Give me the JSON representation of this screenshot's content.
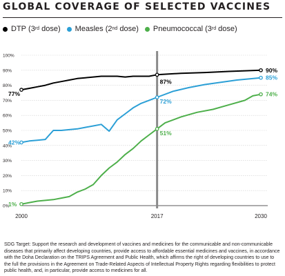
{
  "chart_data": {
    "type": "line",
    "title": "GLOBAL COVERAGE OF SELECTED VACCINES",
    "xlabel": "",
    "ylabel": "",
    "x_ticks": [
      "2000",
      "2017",
      "2030"
    ],
    "y_ticks": [
      "0%",
      "10%",
      "20%",
      "30%",
      "40%",
      "50%",
      "60%",
      "70%",
      "80%",
      "90%",
      "100%"
    ],
    "ylim": [
      0,
      100
    ],
    "xlim": [
      2000,
      2030
    ],
    "marker_year": 2017,
    "series": [
      {
        "name": "DTP",
        "legend_sup": "rd",
        "legend_suffix": "dose)",
        "color": "#000000",
        "x": [
          2000,
          2001,
          2002,
          2003,
          2004,
          2005,
          2006,
          2007,
          2008,
          2009,
          2010,
          2011,
          2012,
          2013,
          2014,
          2015,
          2016,
          2017
        ],
        "y": [
          77,
          78,
          79,
          80,
          81.5,
          82.5,
          83.5,
          84.5,
          85,
          85.5,
          86,
          86,
          86,
          85.5,
          86,
          86,
          86,
          87
        ],
        "proj_x": [
          2017,
          2020,
          2023,
          2026,
          2030
        ],
        "proj_y": [
          87,
          88,
          88.5,
          89.2,
          90
        ],
        "start_label": "77%",
        "mid_label": "87%",
        "end_label": "90%"
      },
      {
        "name": "Measles",
        "legend_sup": "nd",
        "legend_suffix": "dose)",
        "color": "#2b9fd6",
        "x": [
          2000,
          2001,
          2002,
          2003,
          2004,
          2005,
          2006,
          2007,
          2008,
          2009,
          2010,
          2011,
          2012,
          2013,
          2014,
          2015,
          2016,
          2017
        ],
        "y": [
          42,
          43,
          43.5,
          44,
          50,
          50,
          50.5,
          51,
          52,
          53,
          54,
          49.5,
          57,
          61,
          65,
          68,
          70,
          72
        ],
        "proj_x": [
          2017,
          2019,
          2021,
          2023,
          2025,
          2027,
          2030
        ],
        "proj_y": [
          72,
          76,
          78.5,
          80.5,
          82,
          83.5,
          85
        ],
        "start_label": "42%",
        "mid_label": "72%",
        "end_label": "85%"
      },
      {
        "name": "Pneumococcal",
        "legend_sup": "rd",
        "legend_suffix": "dose)",
        "color": "#4daf4a",
        "x": [
          2000,
          2001,
          2002,
          2003,
          2004,
          2005,
          2006,
          2007,
          2008,
          2009,
          2010,
          2011,
          2012,
          2013,
          2014,
          2015,
          2016,
          2017
        ],
        "y": [
          1,
          2,
          3,
          3.5,
          4,
          5,
          6,
          9,
          11,
          14,
          20,
          25,
          29,
          34,
          38,
          43,
          47,
          51
        ],
        "proj_x": [
          2017,
          2018,
          2020,
          2022,
          2024,
          2026,
          2028,
          2029,
          2030
        ],
        "proj_y": [
          51,
          55,
          59,
          62,
          64,
          67,
          70,
          73,
          74
        ],
        "start_label": "1%",
        "mid_label": "51%",
        "end_label": "74%"
      }
    ]
  },
  "footnote": "SDG Target: Support the research and development of vaccines and medicines for the communicable and non-communicable diseases that primarily affect developing countries, provide access to affordable essential medicines and vaccines, in accordance with the Doha Declaration on the TRIPS Agreement and Public Health, which affirms the right of developing countries to use to the full the provisions in the Agreement on Trade-Related Aspects of Intellectual Property Rights regarding flexibilities to protect public health, and, in particular, provide access to medicines for all."
}
